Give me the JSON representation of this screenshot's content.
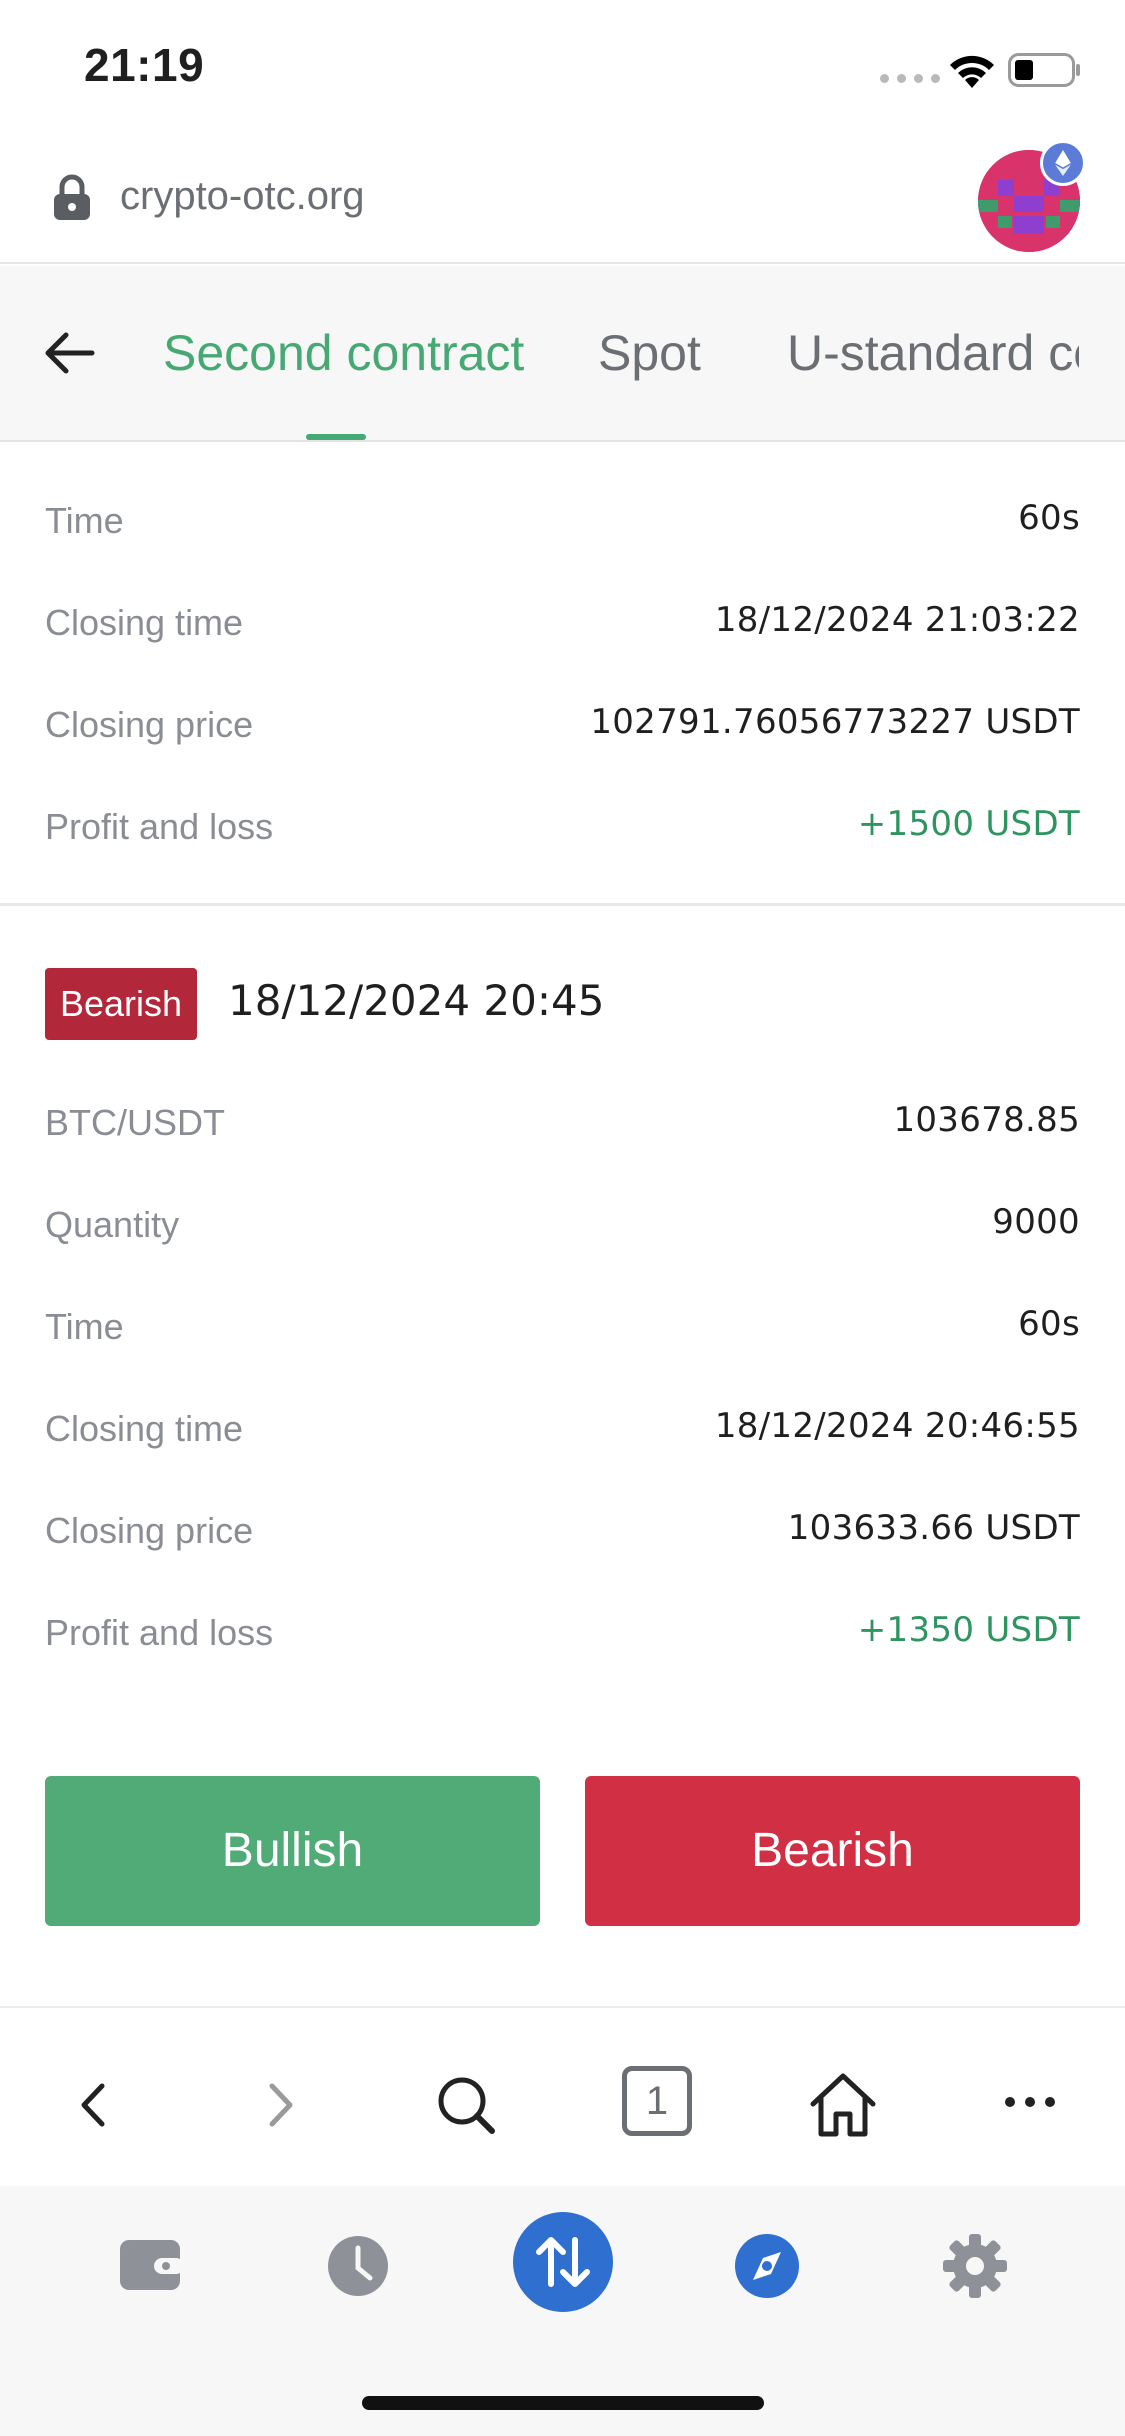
{
  "status_bar": {
    "time": "21:19"
  },
  "browser": {
    "url": "crypto-otc.org",
    "tab_count": "1"
  },
  "tabs": [
    {
      "label": "Second contract",
      "active": true
    },
    {
      "label": "Spot",
      "active": false
    },
    {
      "label": "U-standard contract",
      "active": false
    }
  ],
  "previous_order": {
    "rows": [
      {
        "label": "Time",
        "value": "60s"
      },
      {
        "label": "Closing time",
        "value": "18/12/2024 21:03:22"
      },
      {
        "label": "Closing price",
        "value": "102791.76056773227 USDT"
      },
      {
        "label": "Profit and loss",
        "value": "+1500 USDT"
      }
    ]
  },
  "order": {
    "direction": "Bearish",
    "date": "18/12/2024 20:45",
    "rows": [
      {
        "label": "BTC/USDT",
        "value": "103678.85"
      },
      {
        "label": "Quantity",
        "value": "9000"
      },
      {
        "label": "Time",
        "value": "60s"
      },
      {
        "label": "Closing time",
        "value": "18/12/2024 20:46:55"
      },
      {
        "label": "Closing price",
        "value": "103633.66 USDT"
      },
      {
        "label": "Profit and loss",
        "value": "+1350 USDT"
      }
    ]
  },
  "actions": {
    "bullish": "Bullish",
    "bearish": "Bearish"
  },
  "colors": {
    "accent_green": "#46a873",
    "bullish": "#51ab77",
    "bearish": "#d12f43",
    "badge_bearish": "#b3273a",
    "profit": "#2e9560",
    "nav_active": "#2f6fcf"
  }
}
